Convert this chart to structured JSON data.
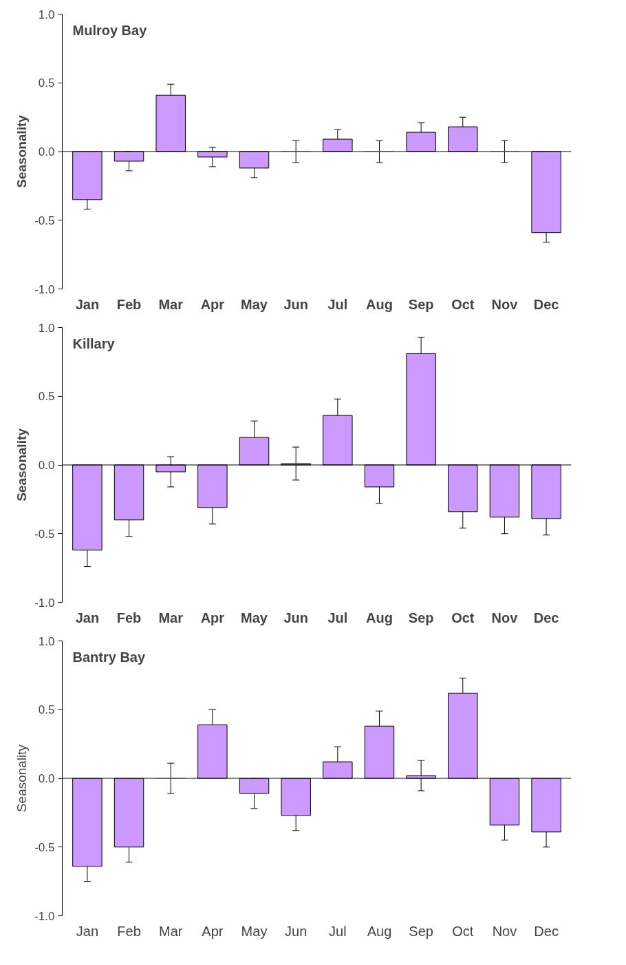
{
  "chart_data": [
    {
      "type": "bar",
      "title": "Mulroy Bay",
      "ylabel": "Seasonality",
      "categories": [
        "Jan",
        "Feb",
        "Mar",
        "Apr",
        "May",
        "Jun",
        "Jul",
        "Aug",
        "Sep",
        "Oct",
        "Nov",
        "Dec"
      ],
      "ref_lines": [
        {
          "axis": "y",
          "value": 0.0
        }
      ],
      "values": [
        -0.35,
        -0.07,
        0.41,
        -0.04,
        -0.12,
        0.0,
        0.09,
        0.0,
        0.14,
        0.18,
        0.0,
        -0.59
      ],
      "errors": [
        0.07,
        0.07,
        0.08,
        0.07,
        0.07,
        0.08,
        0.07,
        0.08,
        0.07,
        0.07,
        0.08,
        0.07
      ],
      "color": "#cc99ff",
      "ylim": [
        -1.0,
        1.0
      ],
      "yticks": [
        {
          "value": -1.0,
          "label": "-1.0"
        },
        {
          "value": -0.5,
          "label": "-0.5"
        },
        {
          "value": 0.0,
          "label": "0.0"
        },
        {
          "value": 0.5,
          "label": "0.5"
        },
        {
          "value": 1.0,
          "label": "1.0"
        }
      ],
      "grid": false,
      "legend": false
    },
    {
      "type": "bar",
      "title": "Killary",
      "ylabel": "Seasonality",
      "categories": [
        "Jan",
        "Feb",
        "Mar",
        "Apr",
        "May",
        "Jun",
        "Jul",
        "Aug",
        "Sep",
        "Oct",
        "Nov",
        "Dec"
      ],
      "ref_lines": [
        {
          "axis": "y",
          "value": 0.0
        }
      ],
      "values": [
        -0.62,
        -0.4,
        -0.05,
        -0.31,
        0.2,
        0.01,
        0.36,
        -0.16,
        0.81,
        -0.34,
        -0.38,
        -0.39
      ],
      "errors": [
        0.12,
        0.12,
        0.11,
        0.12,
        0.12,
        0.12,
        0.12,
        0.12,
        0.12,
        0.12,
        0.12,
        0.12
      ],
      "color": "#cc99ff",
      "ylim": [
        -1.0,
        1.0
      ],
      "yticks": [
        {
          "value": -1.0,
          "label": "-1.0"
        },
        {
          "value": -0.5,
          "label": "-0.5"
        },
        {
          "value": 0.0,
          "label": "0.0"
        },
        {
          "value": 0.5,
          "label": "0.5"
        },
        {
          "value": 1.0,
          "label": "1.0"
        }
      ],
      "grid": false,
      "legend": false
    },
    {
      "type": "bar",
      "title": "Bantry Bay",
      "ylabel": "Seasonality",
      "categories": [
        "Jan",
        "Feb",
        "Mar",
        "Apr",
        "May",
        "Jun",
        "Jul",
        "Aug",
        "Sep",
        "Oct",
        "Nov",
        "Dec"
      ],
      "ref_lines": [
        {
          "axis": "y",
          "value": 0.0
        }
      ],
      "values": [
        -0.64,
        -0.5,
        0.0,
        0.39,
        -0.11,
        -0.27,
        0.12,
        0.38,
        0.02,
        0.62,
        -0.34,
        -0.39
      ],
      "errors": [
        0.11,
        0.11,
        0.11,
        0.11,
        0.11,
        0.11,
        0.11,
        0.11,
        0.11,
        0.11,
        0.11,
        0.11
      ],
      "color": "#cc99ff",
      "ylim": [
        -1.0,
        1.0
      ],
      "yticks": [
        {
          "value": -1.0,
          "label": "-1.0"
        },
        {
          "value": -0.5,
          "label": "-0.5"
        },
        {
          "value": 0.0,
          "label": "0.0"
        },
        {
          "value": 0.5,
          "label": "0.5"
        },
        {
          "value": 1.0,
          "label": "1.0"
        }
      ],
      "grid": false,
      "legend": false
    }
  ]
}
